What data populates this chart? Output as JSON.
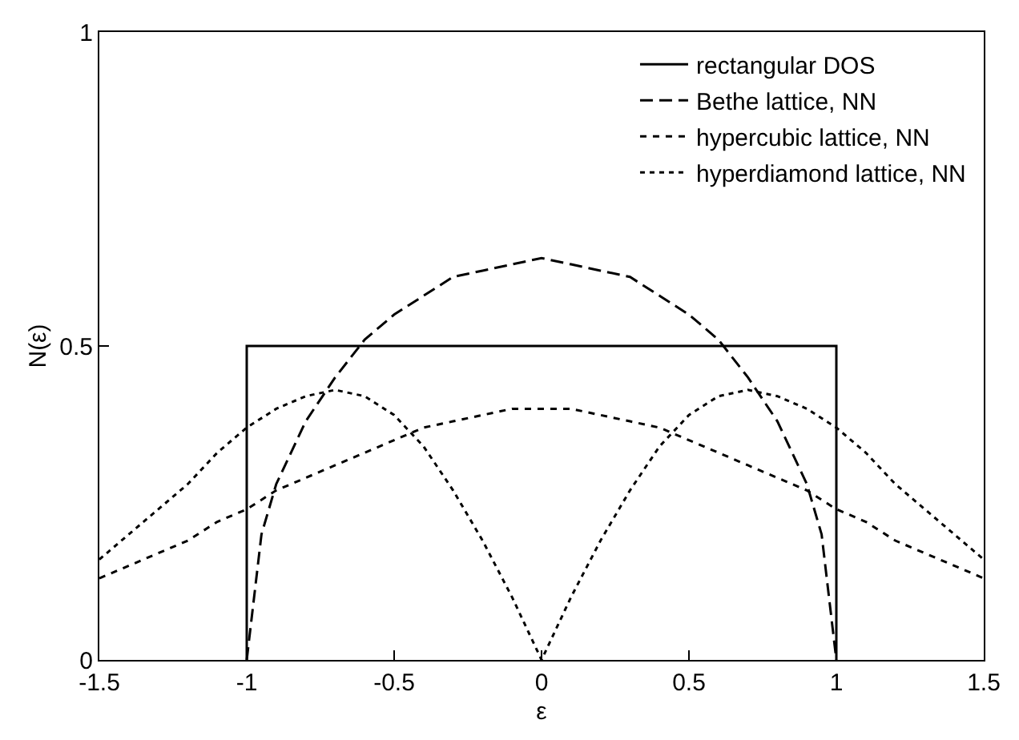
{
  "chart_data": {
    "type": "line",
    "xlabel": "ε",
    "ylabel": "N(ε)",
    "xlim": [
      -1.5,
      1.5
    ],
    "xticks": [
      -1.5,
      -1,
      -0.5,
      0,
      0.5,
      1,
      1.5
    ],
    "ylim": [
      0,
      1
    ],
    "yticks": [
      0,
      0.5,
      1
    ],
    "grid": false,
    "legend": "top right",
    "marker": "none",
    "series": [
      {
        "name": "rectangular DOS",
        "color": "#000000",
        "line_style": "solid",
        "x": [
          -1,
          -1,
          1,
          1
        ],
        "values": [
          0,
          0.5,
          0.5,
          0
        ]
      },
      {
        "name": "Bethe lattice, NN",
        "color": "#000000",
        "line_style": "dashed",
        "x": [
          -1,
          -0.95,
          -0.9,
          -0.8,
          -0.7,
          -0.6,
          -0.5,
          -0.4,
          -0.3,
          -0.2,
          -0.1,
          0,
          0.1,
          0.2,
          0.3,
          0.4,
          0.5,
          0.6,
          0.7,
          0.8,
          0.9,
          0.95,
          1
        ],
        "values": [
          0,
          0.2,
          0.28,
          0.38,
          0.45,
          0.51,
          0.55,
          0.58,
          0.61,
          0.62,
          0.63,
          0.64,
          0.63,
          0.62,
          0.61,
          0.58,
          0.55,
          0.51,
          0.45,
          0.38,
          0.28,
          0.2,
          0
        ]
      },
      {
        "name": "hypercubic lattice, NN",
        "color": "#000000",
        "line_style": "dashed",
        "x": [
          -1.5,
          -1.4,
          -1.3,
          -1.2,
          -1.1,
          -1,
          -0.9,
          -0.8,
          -0.7,
          -0.6,
          -0.5,
          -0.4,
          -0.3,
          -0.2,
          -0.1,
          0,
          0.1,
          0.2,
          0.3,
          0.4,
          0.5,
          0.6,
          0.7,
          0.8,
          0.9,
          1,
          1.1,
          1.2,
          1.3,
          1.4,
          1.5
        ],
        "values": [
          0.13,
          0.15,
          0.17,
          0.19,
          0.22,
          0.24,
          0.27,
          0.29,
          0.31,
          0.33,
          0.35,
          0.37,
          0.38,
          0.39,
          0.4,
          0.4,
          0.4,
          0.39,
          0.38,
          0.37,
          0.35,
          0.33,
          0.31,
          0.29,
          0.27,
          0.24,
          0.22,
          0.19,
          0.17,
          0.15,
          0.13
        ]
      },
      {
        "name": "hyperdiamond lattice, NN",
        "color": "#000000",
        "line_style": "dotted",
        "x": [
          -1.5,
          -1.4,
          -1.3,
          -1.2,
          -1.1,
          -1,
          -0.9,
          -0.8,
          -0.7,
          -0.6,
          -0.5,
          -0.4,
          -0.3,
          -0.2,
          -0.1,
          -0.05,
          0,
          0.05,
          0.1,
          0.2,
          0.3,
          0.4,
          0.5,
          0.6,
          0.7,
          0.8,
          0.9,
          1,
          1.1,
          1.2,
          1.3,
          1.4,
          1.5
        ],
        "values": [
          0.16,
          0.2,
          0.24,
          0.28,
          0.33,
          0.37,
          0.4,
          0.42,
          0.43,
          0.42,
          0.39,
          0.34,
          0.27,
          0.19,
          0.1,
          0.05,
          0,
          0.05,
          0.1,
          0.19,
          0.27,
          0.34,
          0.39,
          0.42,
          0.43,
          0.42,
          0.4,
          0.37,
          0.33,
          0.28,
          0.24,
          0.2,
          0.16
        ]
      }
    ]
  }
}
